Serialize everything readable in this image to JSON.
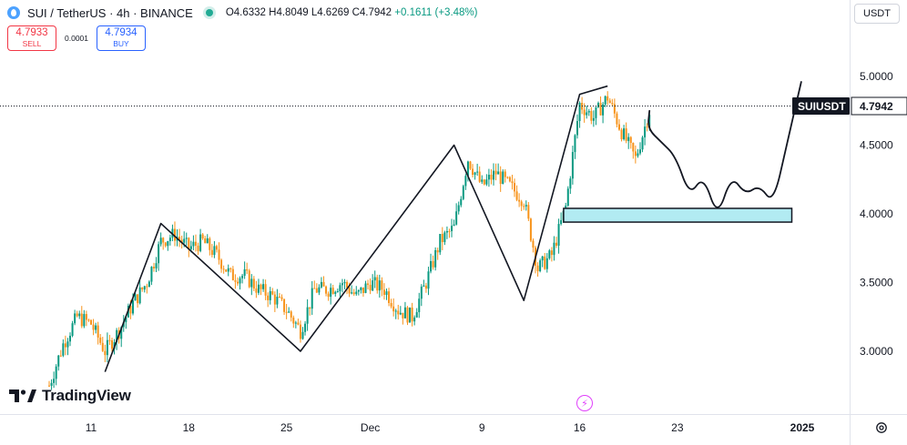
{
  "header": {
    "symbol": "SUI / TetherUS · 4h · BINANCE",
    "ohlc": "O4.6332 H4.8049 L4.6269 C4.7942",
    "change": "+0.1611 (+3.48%)"
  },
  "trade": {
    "sell_price": "4.7933",
    "sell_label": "SELL",
    "spread": "0.0001",
    "buy_price": "4.7934",
    "buy_label": "BUY"
  },
  "currency": "USDT",
  "price_label": {
    "symbol": "SUIUSDT",
    "value": "4.7942"
  },
  "logo": {
    "text": "TradingView"
  },
  "icons": {
    "logo": "tradingview-logo",
    "settings": "gear-icon",
    "bolt": "lightning-icon",
    "symbol": "sui-icon"
  },
  "colors": {
    "up": "#089981",
    "down": "#f7931a",
    "zone_fill": "#b2ebf2"
  },
  "chart_data": {
    "type": "candlestick",
    "title": "",
    "xlabel": "",
    "ylabel": "",
    "ylim": [
      2.6,
      5.3
    ],
    "x_ticks": [
      "11",
      "18",
      "25",
      "Dec",
      "9",
      "16",
      "23",
      "2025"
    ],
    "y_ticks": [
      "5.0000",
      "4.5000",
      "4.0000",
      "3.5000",
      "3.0000"
    ],
    "y_tick_values": [
      5.0,
      4.5,
      4.0,
      3.5,
      3.0
    ],
    "last_price": 4.7942,
    "price_path_anchors": [
      [
        "2024-11-08",
        2.75
      ],
      [
        "2024-11-09",
        3.05
      ],
      [
        "2024-11-10",
        3.25
      ],
      [
        "2024-11-11",
        3.2
      ],
      [
        "2024-11-12",
        3.0
      ],
      [
        "2024-11-13",
        3.15
      ],
      [
        "2024-11-14",
        3.35
      ],
      [
        "2024-11-15",
        3.5
      ],
      [
        "2024-11-16",
        3.8
      ],
      [
        "2024-11-17",
        3.85
      ],
      [
        "2024-11-18",
        3.75
      ],
      [
        "2024-11-19",
        3.8
      ],
      [
        "2024-11-20",
        3.7
      ],
      [
        "2024-11-21",
        3.55
      ],
      [
        "2024-11-22",
        3.55
      ],
      [
        "2024-11-23",
        3.45
      ],
      [
        "2024-11-24",
        3.4
      ],
      [
        "2024-11-25",
        3.3
      ],
      [
        "2024-11-26",
        3.15
      ],
      [
        "2024-11-27",
        3.45
      ],
      [
        "2024-11-28",
        3.45
      ],
      [
        "2024-11-29",
        3.5
      ],
      [
        "2024-11-30",
        3.4
      ],
      [
        "2024-12-01",
        3.5
      ],
      [
        "2024-12-02",
        3.45
      ],
      [
        "2024-12-03",
        3.3
      ],
      [
        "2024-12-04",
        3.25
      ],
      [
        "2024-12-05",
        3.5
      ],
      [
        "2024-12-06",
        3.8
      ],
      [
        "2024-12-07",
        3.9
      ],
      [
        "2024-12-08",
        4.4
      ],
      [
        "2024-12-09",
        4.2
      ],
      [
        "2024-12-10",
        4.3
      ],
      [
        "2024-12-11",
        4.2
      ],
      [
        "2024-12-12",
        4.1
      ],
      [
        "2024-12-13",
        3.6
      ],
      [
        "2024-12-14",
        3.7
      ],
      [
        "2024-12-15",
        4.05
      ],
      [
        "2024-12-16",
        4.8
      ],
      [
        "2024-12-17",
        4.7
      ],
      [
        "2024-12-18",
        4.85
      ],
      [
        "2024-12-19",
        4.6
      ],
      [
        "2024-12-20",
        4.4
      ],
      [
        "2024-12-21",
        4.75
      ],
      [
        "2024-12-22",
        4.6
      ]
    ],
    "zigzag": [
      [
        "2024-11-12",
        2.85
      ],
      [
        "2024-11-16",
        3.93
      ],
      [
        "2024-11-26",
        3.0
      ],
      [
        "2024-12-07",
        4.5
      ],
      [
        "2024-12-12",
        3.37
      ],
      [
        "2024-12-16",
        4.87
      ],
      [
        "2024-12-18",
        4.93
      ]
    ],
    "projection": [
      [
        "2024-12-21",
        4.75
      ],
      [
        "2024-12-21",
        4.62
      ],
      [
        "2024-12-22",
        4.52
      ],
      [
        "2024-12-23",
        4.42
      ],
      [
        "2024-12-24",
        4.13
      ],
      [
        "2024-12-25",
        4.28
      ],
      [
        "2024-12-26",
        3.97
      ],
      [
        "2024-12-27",
        4.28
      ],
      [
        "2024-12-28",
        4.14
      ],
      [
        "2024-12-29",
        4.21
      ],
      [
        "2024-12-30",
        4.07
      ],
      [
        "2024-12-31",
        4.52
      ],
      [
        "2025-01-01",
        4.96
      ]
    ],
    "support_zone": {
      "x_start": "2024-12-14",
      "x_end": "2024-12-31",
      "y_low": 3.94,
      "y_high": 4.04
    }
  }
}
